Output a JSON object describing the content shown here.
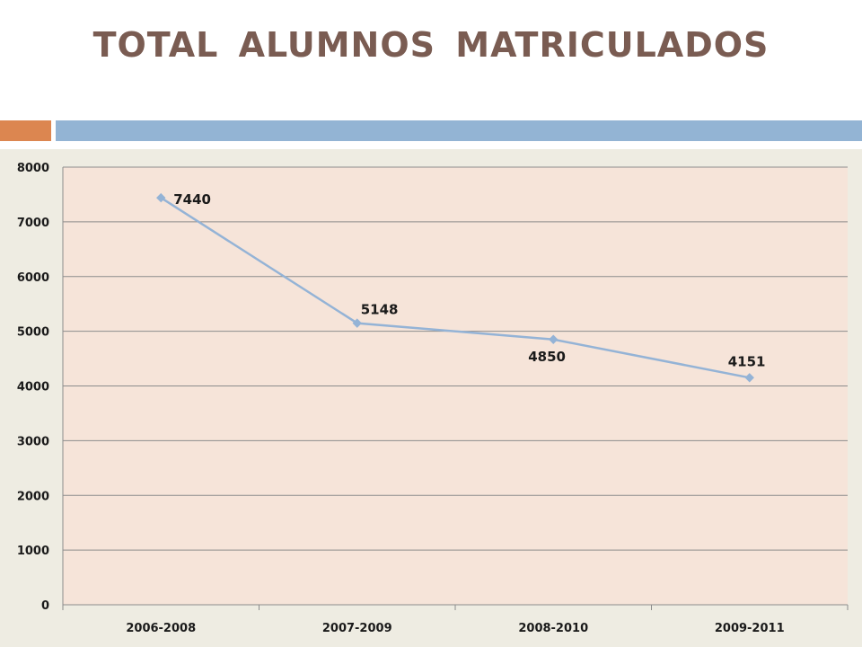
{
  "slide": {
    "title": "TOTAL  ALUMNOS  MATRICULADOS"
  },
  "colors": {
    "title": "#7a5c52",
    "accent_orange": "#dc8650",
    "accent_blue": "#93b4d4",
    "panel_background": "#eeece2",
    "plot_background": "#f6e4d9",
    "series_line": "#94b3d6"
  },
  "chart_data": {
    "type": "line",
    "categories": [
      "2006-2008",
      "2007-2009",
      "2008-2010",
      "2009-2011"
    ],
    "series": [
      {
        "values": [
          7440,
          5148,
          4850,
          4151
        ],
        "marker": "diamond"
      }
    ],
    "data_labels": [
      "7440",
      "5148",
      "4850",
      "4151"
    ],
    "ylim": [
      0,
      8000
    ],
    "yticks": [
      0,
      1000,
      2000,
      3000,
      4000,
      5000,
      6000,
      7000,
      8000
    ],
    "grid": true,
    "legend": "none",
    "xlabel": "",
    "ylabel": ""
  }
}
